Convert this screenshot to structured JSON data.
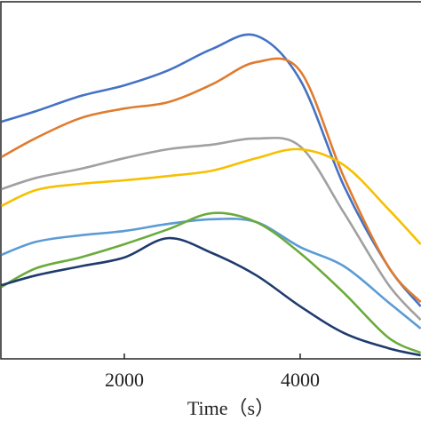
{
  "chart_data": {
    "type": "line",
    "xlabel": "Time（s）",
    "x": [
      600,
      1000,
      1500,
      2000,
      2500,
      3000,
      3500,
      4000,
      4500,
      5000,
      5370
    ],
    "xlim": [
      586,
      5374
    ],
    "xticks": [
      2000,
      4000
    ],
    "ylim": [
      0,
      100
    ],
    "series": [
      {
        "color": "#4472c4",
        "values": [
          66.4,
          69.4,
          73.6,
          76.6,
          80.8,
          86.8,
          90.5,
          78.1,
          48.3,
          25.9,
          14.7
        ]
      },
      {
        "color": "#e07b2e",
        "values": [
          56.5,
          61.9,
          67.4,
          70.1,
          71.9,
          76.9,
          83.1,
          80.6,
          50.7,
          25.9,
          15.9
        ]
      },
      {
        "color": "#a0a0a0",
        "values": [
          47.5,
          50.7,
          53.2,
          56.2,
          58.7,
          60.0,
          61.7,
          59.5,
          40.8,
          20.9,
          10.9
        ]
      },
      {
        "color": "#f6c000",
        "values": [
          42.8,
          47.3,
          49.0,
          50.0,
          51.2,
          52.7,
          56.2,
          58.7,
          54.2,
          42.0,
          32.1
        ]
      },
      {
        "color": "#5b9bd5",
        "values": [
          29.1,
          32.8,
          34.6,
          35.8,
          37.8,
          39.1,
          38.3,
          31.3,
          25.9,
          15.9,
          8.5
        ]
      },
      {
        "color": "#6aab3c",
        "values": [
          20.1,
          25.4,
          28.4,
          32.1,
          36.3,
          40.8,
          38.3,
          29.6,
          18.4,
          6.0,
          1.7
        ]
      },
      {
        "color": "#1f3b6e",
        "values": [
          20.6,
          23.4,
          25.9,
          28.4,
          33.8,
          29.6,
          23.4,
          14.7,
          7.2,
          3.0,
          1.0
        ]
      }
    ]
  }
}
